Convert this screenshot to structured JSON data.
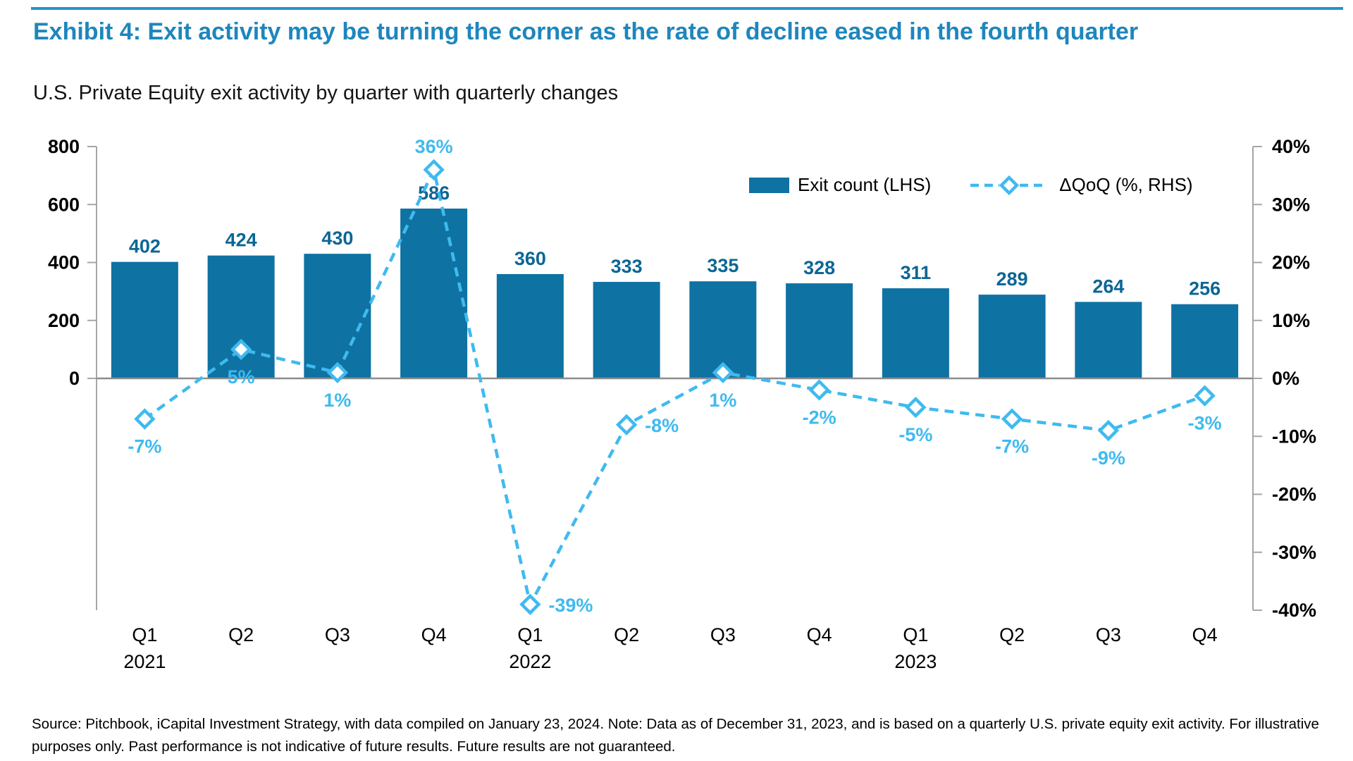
{
  "exhibit": {
    "title": "Exhibit 4: Exit activity may be turning the corner as the rate of decline eased in the fourth quarter",
    "subtitle": "U.S. Private Equity exit activity by quarter with quarterly changes",
    "source_note": "Source: Pitchbook, iCapital Investment Strategy, with data compiled on January 23, 2024. Note: Data as of December 31, 2023, and is based on a quarterly U.S. private equity exit activity. For illustrative purposes only. Past performance is not indicative of future results. Future results are not guaranteed."
  },
  "legend": {
    "bars_label": "Exit count (LHS)",
    "line_label": "ΔQoQ (%, RHS)"
  },
  "colors": {
    "title_blue": "#1E86BD",
    "top_rule_blue": "#2493CB",
    "bar_fill": "#0E72A3",
    "bar_label_blue": "#0C6695",
    "line_blue": "#3FBAEF",
    "axis_gray": "#A6A6A6",
    "zero_line_gray": "#8C8C8C",
    "text_black": "#000000"
  },
  "chart_data": {
    "type": "bar",
    "subtype": "bar+line dual-axis combo",
    "categories": [
      "Q1 2021",
      "Q2 2021",
      "Q3 2021",
      "Q4 2021",
      "Q1 2022",
      "Q2 2022",
      "Q3 2022",
      "Q4 2022",
      "Q1 2023",
      "Q2 2023",
      "Q3 2023",
      "Q4 2023"
    ],
    "x_tick_labels": [
      "Q1",
      "Q2",
      "Q3",
      "Q4",
      "Q1",
      "Q2",
      "Q3",
      "Q4",
      "Q1",
      "Q2",
      "Q3",
      "Q4"
    ],
    "x_year_labels": [
      {
        "index": 0,
        "label": "2021"
      },
      {
        "index": 4,
        "label": "2022"
      },
      {
        "index": 8,
        "label": "2023"
      }
    ],
    "series": [
      {
        "name": "Exit count (LHS)",
        "type": "bar",
        "axis": "left",
        "values": [
          402,
          424,
          430,
          586,
          360,
          333,
          335,
          328,
          311,
          289,
          264,
          256
        ],
        "labels": [
          "402",
          "424",
          "430",
          "586",
          "360",
          "333",
          "335",
          "328",
          "311",
          "289",
          "264",
          "256"
        ]
      },
      {
        "name": "ΔQoQ (%, RHS)",
        "type": "line",
        "axis": "right",
        "line_style": "dashed",
        "marker": "diamond",
        "values": [
          -7,
          5,
          1,
          36,
          -39,
          -8,
          1,
          -2,
          -5,
          -7,
          -9,
          -3
        ],
        "labels": [
          "-7%",
          "5%",
          "1%",
          "36%",
          "-39%",
          "-8%",
          "1%",
          "-2%",
          "-5%",
          "-7%",
          "-9%",
          "-3%"
        ],
        "label_positions": [
          "below",
          "below",
          "below",
          "above",
          "right",
          "right",
          "below",
          "below",
          "below",
          "below",
          "below",
          "below"
        ]
      }
    ],
    "left_axis": {
      "ticks": [
        0,
        200,
        400,
        600,
        800
      ],
      "tick_labels": [
        "0",
        "200",
        "400",
        "600",
        "800"
      ],
      "range": [
        -800,
        800
      ]
    },
    "right_axis": {
      "ticks": [
        40,
        30,
        20,
        10,
        0,
        -10,
        -20,
        -30,
        -40
      ],
      "tick_labels": [
        "40%",
        "30%",
        "20%",
        "10%",
        "0%",
        "-10%",
        "-20%",
        "-30%",
        "-40%"
      ],
      "range": [
        -40,
        40
      ]
    },
    "grid": false,
    "legend_position": "top-right inside plot"
  }
}
